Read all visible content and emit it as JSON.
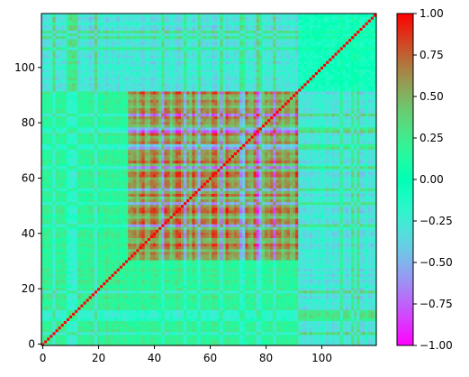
{
  "chart_data": {
    "type": "heatmap",
    "title": "",
    "xlabel": "",
    "ylabel": "",
    "n_rows": 120,
    "n_cols": 120,
    "xlim": [
      -0.5,
      119.5
    ],
    "ylim": [
      -0.5,
      119.5
    ],
    "origin": "lower",
    "colormap": "rainbow",
    "vmin": -1.0,
    "vmax": 1.0,
    "x_ticks": [
      0,
      20,
      40,
      60,
      80,
      100
    ],
    "x_tick_labels": [
      "0",
      "20",
      "40",
      "60",
      "80",
      "100"
    ],
    "y_ticks": [
      0,
      20,
      40,
      60,
      80,
      100
    ],
    "y_tick_labels": [
      "0",
      "20",
      "40",
      "60",
      "80",
      "100"
    ],
    "colorbar_ticks": [
      -1.0,
      -0.75,
      -0.5,
      -0.25,
      0.0,
      0.25,
      0.5,
      0.75,
      1.0
    ],
    "colorbar_tick_labels": [
      "−1.00",
      "−0.75",
      "−0.50",
      "−0.25",
      "0.00",
      "0.25",
      "0.50",
      "0.75",
      "1.00"
    ],
    "structure_summary": {
      "high_correlation_block": {
        "row_range": [
          31,
          91
        ],
        "col_range": [
          31,
          91
        ],
        "approx_value": 0.9
      },
      "secondary_block": {
        "row_range": [
          0,
          30
        ],
        "col_range": [
          0,
          30
        ],
        "approx_value": 0.1
      },
      "low_correlation_band_rows": [
        92,
        119
      ],
      "low_correlation_band_cols": [
        92,
        119
      ],
      "cross_block_value": -0.2
    }
  }
}
